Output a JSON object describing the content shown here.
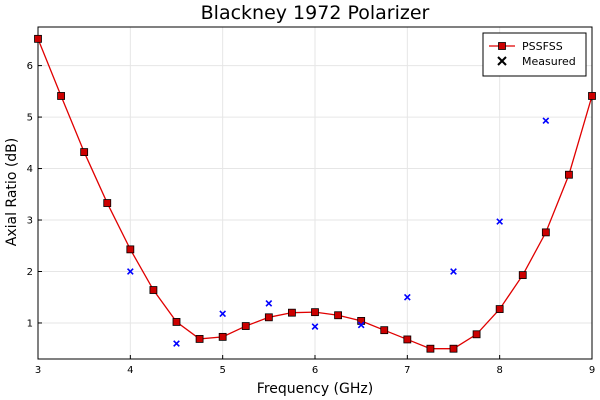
{
  "chart_data": {
    "type": "line",
    "title": "Blackney 1972 Polarizer",
    "xlabel": "Frequency (GHz)",
    "ylabel": "Axial Ratio (dB)",
    "xlim": [
      3,
      9
    ],
    "ylim": [
      0.3,
      6.75
    ],
    "xticks": [
      3,
      4,
      5,
      6,
      7,
      8,
      9
    ],
    "yticks": [
      1,
      2,
      3,
      4,
      5,
      6
    ],
    "grid": true,
    "legend_position": "top-right",
    "series": [
      {
        "name": "PSSFSS",
        "style": "line-square",
        "color": "#e00000",
        "marker_fill": "#cc0000",
        "x": [
          3.0,
          3.25,
          3.5,
          3.75,
          4.0,
          4.25,
          4.5,
          4.75,
          5.0,
          5.25,
          5.5,
          5.75,
          6.0,
          6.25,
          6.5,
          6.75,
          7.0,
          7.25,
          7.5,
          7.75,
          8.0,
          8.25,
          8.5,
          8.75,
          9.0
        ],
        "y": [
          6.52,
          5.41,
          4.32,
          3.33,
          2.43,
          1.64,
          1.02,
          0.69,
          0.73,
          0.94,
          1.11,
          1.2,
          1.21,
          1.15,
          1.04,
          0.86,
          0.68,
          0.5,
          0.5,
          0.78,
          1.27,
          1.93,
          2.76,
          3.88,
          5.41
        ]
      },
      {
        "name": "Measured",
        "style": "cross",
        "color": "#0000ff",
        "x": [
          4.0,
          4.5,
          5.0,
          5.5,
          6.0,
          6.5,
          7.0,
          7.5,
          8.0,
          8.5
        ],
        "y": [
          2.0,
          0.6,
          1.18,
          1.38,
          0.93,
          0.96,
          1.5,
          2.0,
          2.97,
          4.93
        ]
      }
    ]
  }
}
